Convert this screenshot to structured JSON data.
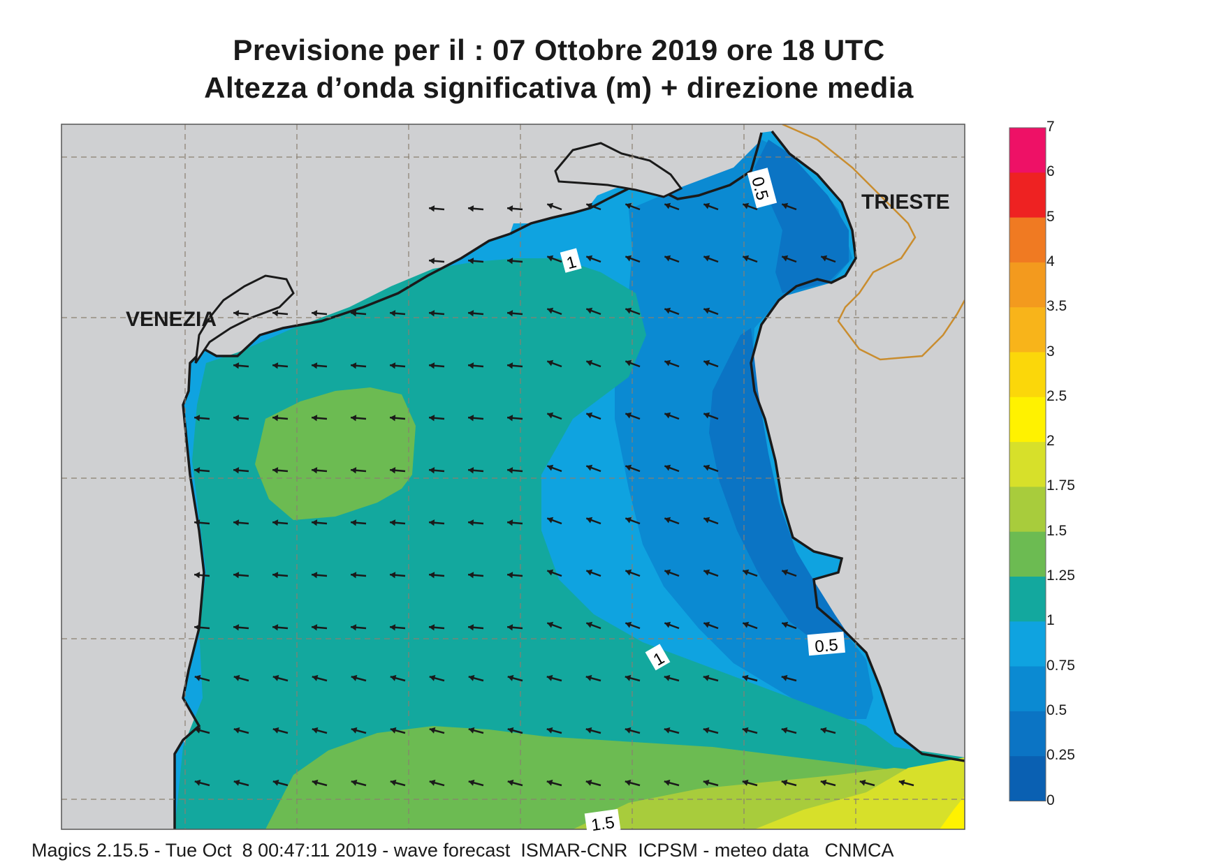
{
  "title": {
    "line1": "Previsione per il  :  07  Ottobre  2019   ore 18 UTC",
    "line2": "Altezza d’onda significativa (m) + direzione media"
  },
  "cities": {
    "venezia": "VENEZIA",
    "trieste": "TRIESTE"
  },
  "contour_labels": {
    "c1a": "1",
    "c1b": "1",
    "c05a": "0.5",
    "c05b": "0.5",
    "c15": "1.5"
  },
  "colorbar": {
    "labels": [
      "7",
      "6",
      "5",
      "4",
      "3.5",
      "3",
      "2.5",
      "2",
      "1.75",
      "1.5",
      "1.25",
      "1",
      "0.75",
      "0.5",
      "0.25",
      "0"
    ],
    "colors": [
      "#ee1166",
      "#ee2222",
      "#f07a22",
      "#f39a1e",
      "#f8b41a",
      "#fbd70a",
      "#fff200",
      "#d7e02a",
      "#a8cc3c",
      "#6cbb52",
      "#13a89e",
      "#0fa3e0",
      "#0b8ad2",
      "#0b74c4",
      "#0a60b2"
    ]
  },
  "footer": "Magics 2.15.5 - Tue Oct  8 00:47:11 2019 - wave forecast  ISMAR-CNR  ICPSM - meteo data   CNMCA",
  "colors": {
    "land": "#cfd0d2",
    "coast": "#1a1a1a",
    "border": "#c98d2f",
    "grid": "#8a7f70"
  }
}
